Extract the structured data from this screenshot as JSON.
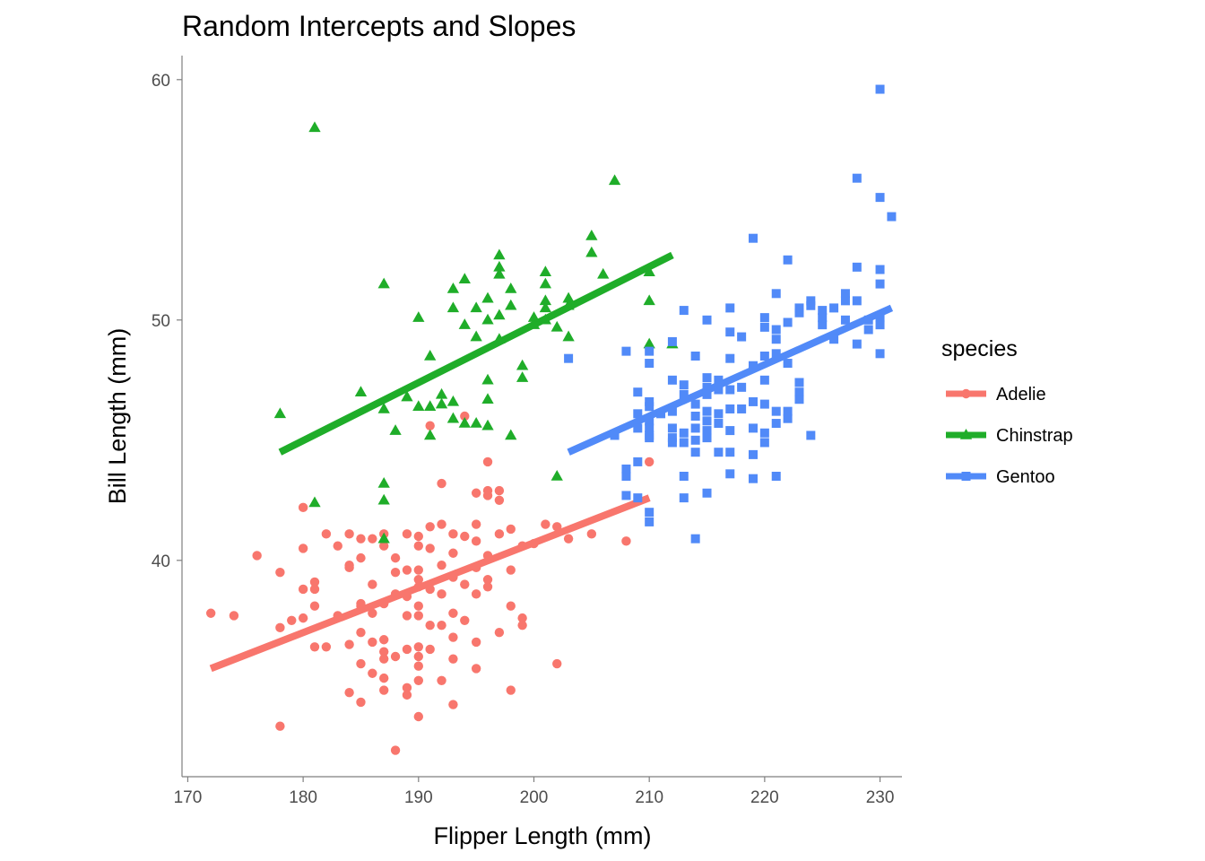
{
  "chart_data": {
    "type": "scatter",
    "title": "Random Intercepts and Slopes",
    "xlabel": "Flipper Length (mm)",
    "ylabel": "Bill Length (mm)",
    "xlim": [
      169.5,
      231.9
    ],
    "ylim": [
      31.0,
      61.0
    ],
    "xticks": [
      170,
      180,
      190,
      200,
      210,
      220,
      230
    ],
    "yticks": [
      40,
      50,
      60
    ],
    "grid": false,
    "legend": {
      "title": "species",
      "position": "right"
    },
    "series": [
      {
        "name": "Adelie",
        "color": "#F8766D",
        "marker": "circle",
        "fit_line": {
          "x": [
            172,
            210
          ],
          "y": [
            35.5,
            42.6
          ]
        },
        "points": [
          [
            172,
            37.8
          ],
          [
            174,
            37.7
          ],
          [
            176,
            40.2
          ],
          [
            178,
            39.5
          ],
          [
            178,
            37.2
          ],
          [
            178,
            33.1
          ],
          [
            179,
            37.5
          ],
          [
            180,
            42.2
          ],
          [
            180,
            40.5
          ],
          [
            180,
            38.8
          ],
          [
            180,
            37.6
          ],
          [
            181,
            39.1
          ],
          [
            181,
            38.8
          ],
          [
            181,
            38.1
          ],
          [
            181,
            36.4
          ],
          [
            182,
            41.1
          ],
          [
            182,
            36.4
          ],
          [
            183,
            40.6
          ],
          [
            183,
            37.7
          ],
          [
            184,
            41.1
          ],
          [
            184,
            39.7
          ],
          [
            184,
            39.8
          ],
          [
            184,
            36.5
          ],
          [
            184,
            34.5
          ],
          [
            185,
            40.9
          ],
          [
            185,
            40.1
          ],
          [
            185,
            38.2
          ],
          [
            185,
            38.1
          ],
          [
            185,
            37.0
          ],
          [
            185,
            35.7
          ],
          [
            185,
            34.1
          ],
          [
            186,
            40.9
          ],
          [
            186,
            39.0
          ],
          [
            186,
            37.8
          ],
          [
            186,
            36.6
          ],
          [
            186,
            35.3
          ],
          [
            187,
            41.1
          ],
          [
            187,
            40.6
          ],
          [
            187,
            38.2
          ],
          [
            187,
            36.7
          ],
          [
            187,
            36.2
          ],
          [
            187,
            35.9
          ],
          [
            187,
            35.1
          ],
          [
            187,
            34.6
          ],
          [
            188,
            40.1
          ],
          [
            188,
            39.5
          ],
          [
            188,
            38.6
          ],
          [
            188,
            36.0
          ],
          [
            188,
            32.1
          ],
          [
            189,
            41.1
          ],
          [
            189,
            39.6
          ],
          [
            189,
            38.5
          ],
          [
            189,
            37.7
          ],
          [
            189,
            36.3
          ],
          [
            189,
            34.4
          ],
          [
            189,
            34.7
          ],
          [
            190,
            41.0
          ],
          [
            190,
            40.6
          ],
          [
            190,
            39.6
          ],
          [
            190,
            39.2
          ],
          [
            190,
            38.9
          ],
          [
            190,
            38.1
          ],
          [
            190,
            37.7
          ],
          [
            190,
            36.4
          ],
          [
            190,
            36.0
          ],
          [
            190,
            35.6
          ],
          [
            190,
            35.0
          ],
          [
            190,
            33.5
          ],
          [
            191,
            41.4
          ],
          [
            191,
            40.5
          ],
          [
            191,
            38.8
          ],
          [
            191,
            37.3
          ],
          [
            191,
            36.3
          ],
          [
            191,
            45.6
          ],
          [
            192,
            43.2
          ],
          [
            192,
            41.5
          ],
          [
            192,
            39.8
          ],
          [
            192,
            38.6
          ],
          [
            192,
            37.3
          ],
          [
            192,
            35.0
          ],
          [
            193,
            41.1
          ],
          [
            193,
            40.3
          ],
          [
            193,
            39.3
          ],
          [
            193,
            37.8
          ],
          [
            193,
            36.8
          ],
          [
            193,
            35.9
          ],
          [
            193,
            34.0
          ],
          [
            194,
            46.0
          ],
          [
            194,
            41.0
          ],
          [
            194,
            39.0
          ],
          [
            194,
            37.5
          ],
          [
            195,
            42.8
          ],
          [
            195,
            41.5
          ],
          [
            195,
            40.8
          ],
          [
            195,
            39.7
          ],
          [
            195,
            38.6
          ],
          [
            195,
            36.6
          ],
          [
            195,
            35.5
          ],
          [
            196,
            42.9
          ],
          [
            196,
            42.7
          ],
          [
            196,
            40.2
          ],
          [
            196,
            39.2
          ],
          [
            196,
            38.9
          ],
          [
            196,
            44.1
          ],
          [
            197,
            42.5
          ],
          [
            197,
            42.9
          ],
          [
            197,
            41.1
          ],
          [
            197,
            37.0
          ],
          [
            198,
            41.3
          ],
          [
            198,
            39.6
          ],
          [
            198,
            38.1
          ],
          [
            198,
            34.6
          ],
          [
            199,
            37.6
          ],
          [
            199,
            37.3
          ],
          [
            199,
            40.6
          ],
          [
            200,
            40.7
          ],
          [
            201,
            41.5
          ],
          [
            202,
            41.4
          ],
          [
            202,
            35.7
          ],
          [
            203,
            40.9
          ],
          [
            205,
            41.1
          ],
          [
            208,
            40.8
          ],
          [
            210,
            44.1
          ]
        ]
      },
      {
        "name": "Chinstrap",
        "color": "#1FAD29",
        "marker": "triangle",
        "fit_line": {
          "x": [
            178,
            212
          ],
          "y": [
            44.5,
            52.7
          ]
        },
        "points": [
          [
            178,
            46.1
          ],
          [
            181,
            58.0
          ],
          [
            181,
            42.4
          ],
          [
            185,
            47.0
          ],
          [
            187,
            51.5
          ],
          [
            187,
            46.3
          ],
          [
            187,
            43.2
          ],
          [
            187,
            42.5
          ],
          [
            187,
            40.9
          ],
          [
            188,
            45.4
          ],
          [
            189,
            46.8
          ],
          [
            190,
            50.1
          ],
          [
            190,
            46.4
          ],
          [
            191,
            48.5
          ],
          [
            191,
            46.4
          ],
          [
            191,
            45.2
          ],
          [
            192,
            46.9
          ],
          [
            192,
            46.5
          ],
          [
            193,
            51.3
          ],
          [
            193,
            50.5
          ],
          [
            193,
            46.6
          ],
          [
            193,
            45.9
          ],
          [
            194,
            51.7
          ],
          [
            194,
            49.8
          ],
          [
            194,
            45.7
          ],
          [
            195,
            50.5
          ],
          [
            195,
            49.3
          ],
          [
            195,
            45.7
          ],
          [
            196,
            50.9
          ],
          [
            196,
            50.0
          ],
          [
            196,
            47.5
          ],
          [
            196,
            46.7
          ],
          [
            196,
            45.6
          ],
          [
            197,
            52.7
          ],
          [
            197,
            52.2
          ],
          [
            197,
            51.9
          ],
          [
            197,
            50.2
          ],
          [
            197,
            49.2
          ],
          [
            198,
            51.3
          ],
          [
            198,
            50.6
          ],
          [
            198,
            45.2
          ],
          [
            199,
            48.1
          ],
          [
            199,
            47.6
          ],
          [
            200,
            50.1
          ],
          [
            200,
            49.8
          ],
          [
            201,
            52.0
          ],
          [
            201,
            51.5
          ],
          [
            201,
            50.8
          ],
          [
            201,
            50.5
          ],
          [
            201,
            50.0
          ],
          [
            202,
            49.7
          ],
          [
            202,
            43.5
          ],
          [
            203,
            50.9
          ],
          [
            203,
            50.6
          ],
          [
            203,
            49.3
          ],
          [
            205,
            53.5
          ],
          [
            205,
            52.8
          ],
          [
            206,
            51.9
          ],
          [
            207,
            55.8
          ],
          [
            210,
            52.0
          ],
          [
            210,
            50.8
          ],
          [
            210,
            49.0
          ],
          [
            212,
            49.0
          ]
        ]
      },
      {
        "name": "Gentoo",
        "color": "#518AF8",
        "marker": "square",
        "fit_line": {
          "x": [
            203,
            231
          ],
          "y": [
            44.5,
            50.5
          ]
        },
        "points": [
          [
            203,
            48.4
          ],
          [
            207,
            45.2
          ],
          [
            208,
            48.7
          ],
          [
            208,
            43.8
          ],
          [
            208,
            43.5
          ],
          [
            208,
            42.7
          ],
          [
            209,
            46.1
          ],
          [
            209,
            45.5
          ],
          [
            209,
            44.1
          ],
          [
            209,
            42.6
          ],
          [
            209,
            47.0
          ],
          [
            210,
            48.7
          ],
          [
            210,
            48.2
          ],
          [
            210,
            46.6
          ],
          [
            210,
            46.4
          ],
          [
            210,
            45.8
          ],
          [
            210,
            45.5
          ],
          [
            210,
            45.1
          ],
          [
            210,
            45.2
          ],
          [
            210,
            42.0
          ],
          [
            210,
            41.6
          ],
          [
            211,
            46.1
          ],
          [
            212,
            49.1
          ],
          [
            212,
            47.5
          ],
          [
            212,
            46.2
          ],
          [
            212,
            45.5
          ],
          [
            212,
            45.1
          ],
          [
            212,
            44.9
          ],
          [
            213,
            50.4
          ],
          [
            213,
            47.3
          ],
          [
            213,
            46.9
          ],
          [
            213,
            45.3
          ],
          [
            213,
            44.9
          ],
          [
            213,
            43.5
          ],
          [
            213,
            42.6
          ],
          [
            214,
            48.5
          ],
          [
            214,
            46.5
          ],
          [
            214,
            46.0
          ],
          [
            214,
            45.5
          ],
          [
            214,
            45.0
          ],
          [
            214,
            44.5
          ],
          [
            214,
            40.9
          ],
          [
            215,
            50.0
          ],
          [
            215,
            47.6
          ],
          [
            215,
            47.2
          ],
          [
            215,
            46.9
          ],
          [
            215,
            46.2
          ],
          [
            215,
            45.8
          ],
          [
            215,
            45.4
          ],
          [
            215,
            45.1
          ],
          [
            215,
            42.8
          ],
          [
            216,
            47.5
          ],
          [
            216,
            47.1
          ],
          [
            216,
            46.1
          ],
          [
            216,
            45.7
          ],
          [
            216,
            44.5
          ],
          [
            217,
            50.5
          ],
          [
            217,
            49.5
          ],
          [
            217,
            48.4
          ],
          [
            217,
            47.1
          ],
          [
            217,
            46.3
          ],
          [
            217,
            45.4
          ],
          [
            217,
            44.5
          ],
          [
            217,
            43.6
          ],
          [
            218,
            49.3
          ],
          [
            218,
            47.2
          ],
          [
            218,
            46.3
          ],
          [
            219,
            53.4
          ],
          [
            219,
            48.1
          ],
          [
            219,
            46.6
          ],
          [
            219,
            45.5
          ],
          [
            219,
            44.4
          ],
          [
            219,
            43.4
          ],
          [
            220,
            50.1
          ],
          [
            220,
            49.7
          ],
          [
            220,
            48.5
          ],
          [
            220,
            47.5
          ],
          [
            220,
            46.5
          ],
          [
            220,
            45.3
          ],
          [
            220,
            44.9
          ],
          [
            221,
            51.1
          ],
          [
            221,
            49.6
          ],
          [
            221,
            48.6
          ],
          [
            221,
            46.2
          ],
          [
            221,
            45.7
          ],
          [
            221,
            43.5
          ],
          [
            221,
            49.2
          ],
          [
            222,
            52.5
          ],
          [
            222,
            49.9
          ],
          [
            222,
            48.2
          ],
          [
            222,
            46.2
          ],
          [
            222,
            45.9
          ],
          [
            223,
            50.5
          ],
          [
            223,
            50.3
          ],
          [
            223,
            47.4
          ],
          [
            223,
            47.0
          ],
          [
            223,
            46.7
          ],
          [
            224,
            50.8
          ],
          [
            224,
            50.6
          ],
          [
            224,
            45.2
          ],
          [
            225,
            50.4
          ],
          [
            225,
            49.8
          ],
          [
            225,
            50.1
          ],
          [
            226,
            50.5
          ],
          [
            226,
            49.2
          ],
          [
            227,
            51.1
          ],
          [
            227,
            50.0
          ],
          [
            227,
            50.8
          ],
          [
            228,
            55.9
          ],
          [
            228,
            52.2
          ],
          [
            228,
            50.8
          ],
          [
            228,
            49.0
          ],
          [
            229,
            50.0
          ],
          [
            229,
            49.6
          ],
          [
            230,
            59.6
          ],
          [
            230,
            55.1
          ],
          [
            230,
            52.1
          ],
          [
            230,
            51.5
          ],
          [
            230,
            50.1
          ],
          [
            230,
            49.8
          ],
          [
            230,
            48.6
          ],
          [
            231,
            54.3
          ]
        ]
      }
    ]
  }
}
